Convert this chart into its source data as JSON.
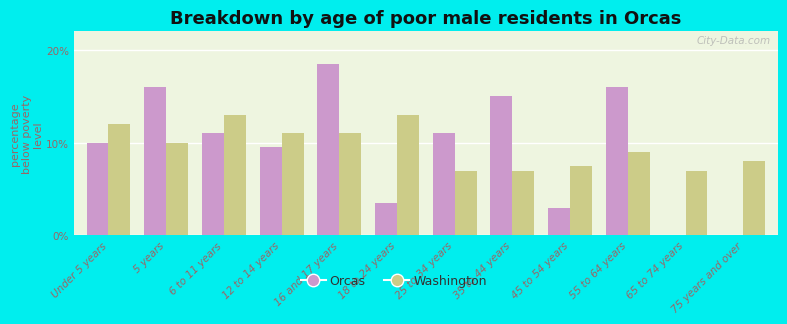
{
  "title": "Breakdown by age of poor male residents in Orcas",
  "ylabel": "percentage\nbelow poverty\nlevel",
  "categories": [
    "Under 5 years",
    "5 years",
    "6 to 11 years",
    "12 to 14 years",
    "16 and 17 years",
    "18 to 24 years",
    "25 to 34 years",
    "35 to 44 years",
    "45 to 54 years",
    "55 to 64 years",
    "65 to 74 years",
    "75 years and over"
  ],
  "orcas_values": [
    10.0,
    16.0,
    11.0,
    9.5,
    18.5,
    3.5,
    11.0,
    15.0,
    3.0,
    16.0,
    0.0,
    0.0
  ],
  "washington_values": [
    12.0,
    10.0,
    13.0,
    11.0,
    11.0,
    13.0,
    7.0,
    7.0,
    7.5,
    9.0,
    7.0,
    8.0
  ],
  "orcas_color": "#cc99cc",
  "washington_color": "#cccc88",
  "background_color": "#00eeee",
  "plot_bg_color": "#eef5e0",
  "ylim": [
    0,
    22
  ],
  "ytick_values": [
    0,
    10,
    20
  ],
  "ytick_labels": [
    "0%",
    "10%",
    "20%"
  ],
  "bar_width": 0.38,
  "title_fontsize": 13,
  "axis_label_fontsize": 8,
  "tick_fontsize": 7.5,
  "legend_fontsize": 9,
  "watermark": "City-Data.com"
}
